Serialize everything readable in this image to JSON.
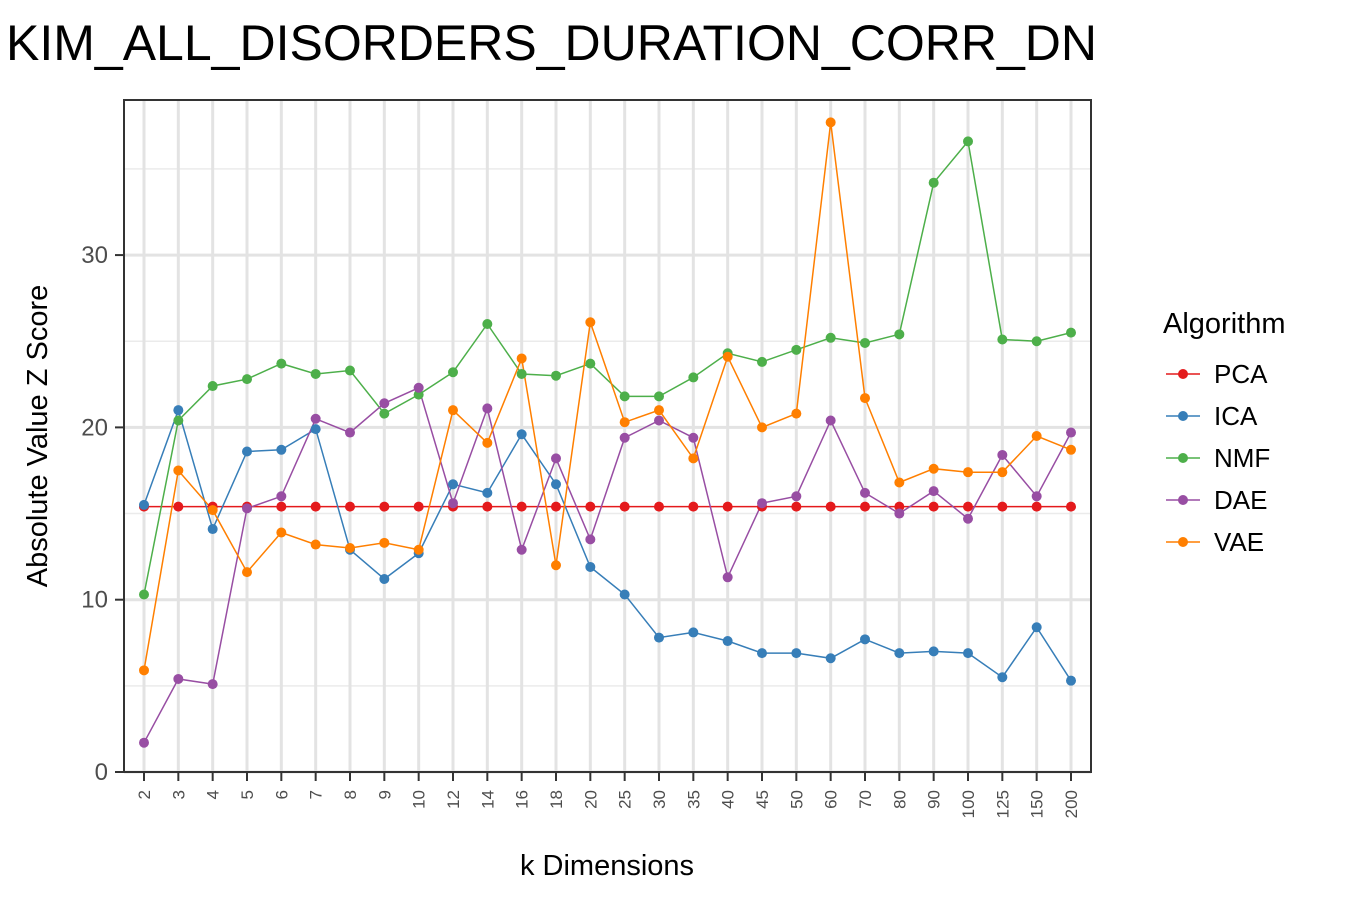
{
  "chart_data": {
    "type": "line",
    "title": "KIM_ALL_DISORDERS_DURATION_CORR_DN",
    "xlabel": "k Dimensions",
    "ylabel": "Absolute Value Z Score",
    "categories": [
      "2",
      "3",
      "4",
      "5",
      "6",
      "7",
      "8",
      "9",
      "10",
      "12",
      "14",
      "16",
      "18",
      "20",
      "25",
      "30",
      "35",
      "40",
      "45",
      "50",
      "60",
      "70",
      "80",
      "90",
      "100",
      "125",
      "150",
      "200"
    ],
    "ylim": [
      0,
      39
    ],
    "yticks": [
      0,
      10,
      20,
      30
    ],
    "grid": true,
    "legend": {
      "title": "Algorithm",
      "position": "right"
    },
    "series": [
      {
        "name": "PCA",
        "color": "#e41a1c",
        "values": [
          15.4,
          15.4,
          15.4,
          15.4,
          15.4,
          15.4,
          15.4,
          15.4,
          15.4,
          15.4,
          15.4,
          15.4,
          15.4,
          15.4,
          15.4,
          15.4,
          15.4,
          15.4,
          15.4,
          15.4,
          15.4,
          15.4,
          15.4,
          15.4,
          15.4,
          15.4,
          15.4,
          15.4
        ]
      },
      {
        "name": "ICA",
        "color": "#377eb8",
        "values": [
          15.5,
          21.0,
          14.1,
          18.6,
          18.7,
          19.9,
          12.9,
          11.2,
          12.7,
          16.7,
          16.2,
          19.6,
          16.7,
          11.9,
          10.3,
          7.8,
          8.1,
          7.6,
          6.9,
          6.9,
          6.6,
          7.7,
          6.9,
          7.0,
          6.9,
          5.5,
          8.4,
          5.3
        ]
      },
      {
        "name": "NMF",
        "color": "#4daf4a",
        "values": [
          10.3,
          20.4,
          22.4,
          22.8,
          23.7,
          23.1,
          23.3,
          20.8,
          21.9,
          23.2,
          26.0,
          23.1,
          23.0,
          23.7,
          21.8,
          21.8,
          22.9,
          24.3,
          23.8,
          24.5,
          25.2,
          24.9,
          25.4,
          34.2,
          36.6,
          25.1,
          25.0,
          25.5
        ]
      },
      {
        "name": "DAE",
        "color": "#984ea3",
        "values": [
          1.7,
          5.4,
          5.1,
          15.3,
          16.0,
          20.5,
          19.7,
          21.4,
          22.3,
          15.6,
          21.1,
          12.9,
          18.2,
          13.5,
          19.4,
          20.4,
          19.4,
          11.3,
          15.6,
          16.0,
          20.4,
          16.2,
          15.0,
          16.3,
          14.7,
          18.4,
          16.0,
          19.7
        ]
      },
      {
        "name": "VAE",
        "color": "#ff7f00",
        "values": [
          5.9,
          17.5,
          15.2,
          11.6,
          13.9,
          13.2,
          13.0,
          13.3,
          12.9,
          21.0,
          19.1,
          24.0,
          12.0,
          26.1,
          20.3,
          21.0,
          18.2,
          24.1,
          20.0,
          20.8,
          37.7,
          21.7,
          16.8,
          17.6,
          17.4,
          17.4,
          19.5,
          18.7
        ]
      }
    ]
  }
}
